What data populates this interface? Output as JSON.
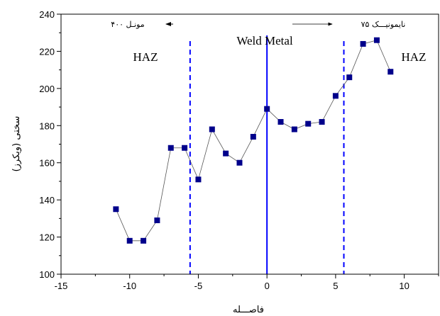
{
  "chart_data": {
    "type": "scatter",
    "xlabel": "فاصـــله",
    "ylabel": "سختی (ویکرز)",
    "xlim": [
      -15,
      12.5
    ],
    "ylim": [
      100,
      240
    ],
    "xticks": [
      -15,
      -10,
      -5,
      0,
      5,
      10
    ],
    "yticks": [
      100,
      120,
      140,
      160,
      180,
      200,
      220,
      240
    ],
    "grid": false,
    "legend": "none",
    "series": [
      {
        "color": "#00008B",
        "marker": "square",
        "x": [
          -11,
          -10,
          -9,
          -8,
          -7,
          -6,
          -5,
          -4,
          -3,
          -2,
          -1,
          0,
          1,
          2,
          3,
          4,
          5,
          6,
          7,
          8,
          9
        ],
        "y": [
          135,
          118,
          118,
          129,
          168,
          168,
          151,
          178,
          165,
          160,
          174,
          189,
          182,
          178,
          181,
          182,
          196,
          206,
          224,
          226,
          209
        ]
      }
    ],
    "vlines": [
      {
        "x": -5.6,
        "style": "dashed",
        "color": "#0000FF"
      },
      {
        "x": 0,
        "style": "solid",
        "color": "#0000FF"
      },
      {
        "x": 5.6,
        "style": "dashed",
        "color": "#0000FF"
      }
    ],
    "annotations": {
      "haz_left": "HAZ",
      "weld_metal": "Weld Metal",
      "haz_right": "HAZ",
      "monel_label": "مونـل ۴۰۰",
      "nimonic_label": "نایمونیـــک ۷۵"
    }
  }
}
